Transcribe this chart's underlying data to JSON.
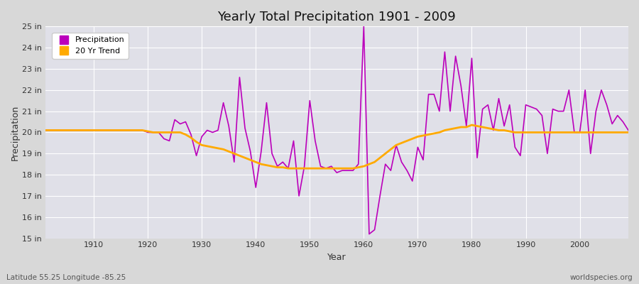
{
  "title": "Yearly Total Precipitation 1901 - 2009",
  "xlabel": "Year",
  "ylabel": "Precipitation",
  "subtitle": "Latitude 55.25 Longitude -85.25",
  "watermark": "worldspecies.org",
  "bg_color": "#d8d8d8",
  "plot_bg_color": "#e0e0e8",
  "precip_color": "#bb00bb",
  "trend_color": "#ffaa00",
  "years": [
    1901,
    1902,
    1903,
    1904,
    1905,
    1906,
    1907,
    1908,
    1909,
    1910,
    1911,
    1912,
    1913,
    1914,
    1915,
    1916,
    1917,
    1918,
    1919,
    1920,
    1921,
    1922,
    1923,
    1924,
    1925,
    1926,
    1927,
    1928,
    1929,
    1930,
    1931,
    1932,
    1933,
    1934,
    1935,
    1936,
    1937,
    1938,
    1939,
    1940,
    1941,
    1942,
    1943,
    1944,
    1945,
    1946,
    1947,
    1948,
    1949,
    1950,
    1951,
    1952,
    1953,
    1954,
    1955,
    1956,
    1957,
    1958,
    1959,
    1960,
    1961,
    1962,
    1963,
    1964,
    1965,
    1966,
    1967,
    1968,
    1969,
    1970,
    1971,
    1972,
    1973,
    1974,
    1975,
    1976,
    1977,
    1978,
    1979,
    1980,
    1981,
    1982,
    1983,
    1984,
    1985,
    1986,
    1987,
    1988,
    1989,
    1990,
    1991,
    1992,
    1993,
    1994,
    1995,
    1996,
    1997,
    1998,
    1999,
    2000,
    2001,
    2002,
    2003,
    2004,
    2005,
    2006,
    2007,
    2008,
    2009
  ],
  "precip": [
    20.1,
    20.1,
    20.1,
    20.1,
    20.1,
    20.1,
    20.1,
    20.1,
    20.1,
    20.1,
    20.1,
    20.1,
    20.1,
    20.1,
    20.1,
    20.1,
    20.1,
    20.1,
    20.1,
    20.0,
    20.0,
    20.0,
    19.7,
    19.6,
    20.6,
    20.4,
    20.5,
    19.9,
    18.9,
    19.8,
    20.1,
    20.0,
    20.1,
    21.4,
    20.3,
    18.6,
    22.6,
    20.2,
    19.1,
    17.4,
    19.1,
    21.4,
    19.0,
    18.4,
    18.6,
    18.3,
    19.6,
    17.0,
    18.4,
    21.5,
    19.6,
    18.4,
    18.3,
    18.4,
    18.1,
    18.2,
    18.2,
    18.2,
    18.5,
    25.0,
    15.2,
    15.4,
    17.0,
    18.5,
    18.2,
    19.4,
    18.6,
    18.2,
    17.7,
    19.3,
    18.7,
    21.8,
    21.8,
    21.0,
    23.8,
    21.0,
    23.6,
    22.2,
    20.3,
    23.5,
    18.8,
    21.1,
    21.3,
    20.1,
    21.6,
    20.3,
    21.3,
    19.3,
    18.9,
    21.3,
    21.2,
    21.1,
    20.8,
    19.0,
    21.1,
    21.0,
    21.0,
    22.0,
    20.0,
    20.0,
    22.0,
    19.0,
    21.0,
    22.0,
    21.3,
    20.4,
    20.8,
    20.5,
    20.1
  ],
  "trend": [
    20.1,
    20.1,
    20.1,
    20.1,
    20.1,
    20.1,
    20.1,
    20.1,
    20.1,
    20.1,
    20.1,
    20.1,
    20.1,
    20.1,
    20.1,
    20.1,
    20.1,
    20.1,
    20.1,
    20.05,
    20.0,
    20.0,
    20.0,
    20.0,
    20.0,
    20.0,
    19.9,
    19.75,
    19.55,
    19.4,
    19.35,
    19.3,
    19.25,
    19.2,
    19.1,
    19.0,
    18.9,
    18.8,
    18.7,
    18.6,
    18.5,
    18.45,
    18.4,
    18.35,
    18.35,
    18.3,
    18.3,
    18.3,
    18.3,
    18.3,
    18.3,
    18.3,
    18.3,
    18.3,
    18.3,
    18.3,
    18.3,
    18.3,
    18.35,
    18.4,
    18.5,
    18.6,
    18.8,
    19.0,
    19.2,
    19.4,
    19.5,
    19.6,
    19.7,
    19.8,
    19.85,
    19.9,
    19.95,
    20.0,
    20.1,
    20.15,
    20.2,
    20.25,
    20.25,
    20.35,
    20.3,
    20.25,
    20.2,
    20.15,
    20.1,
    20.1,
    20.05,
    20.0,
    20.0,
    20.0,
    20.0,
    20.0,
    20.0,
    20.0,
    20.0,
    20.0,
    20.0,
    20.0,
    20.0,
    20.0,
    20.0,
    20.0,
    20.0,
    20.0,
    20.0,
    20.0,
    20.0,
    20.0,
    20.0
  ],
  "ylim": [
    15,
    25
  ],
  "yticks": [
    15,
    16,
    17,
    18,
    19,
    20,
    21,
    22,
    23,
    24,
    25
  ],
  "xticks": [
    1910,
    1920,
    1930,
    1940,
    1950,
    1960,
    1970,
    1980,
    1990,
    2000
  ]
}
